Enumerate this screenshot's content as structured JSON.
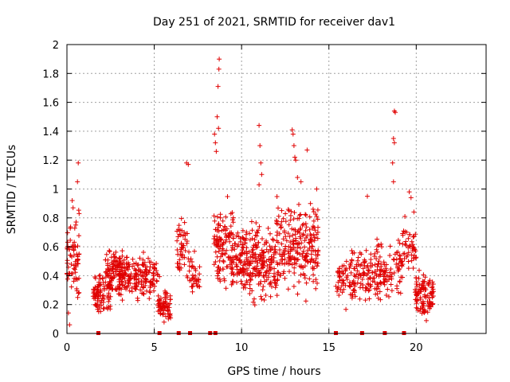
{
  "chart_data": {
    "type": "scatter",
    "title": "Day 251 of 2021, SRMTID for receiver dav1",
    "xlabel": "GPS time / hours",
    "ylabel": "SRMTID / TECUs",
    "xlim": [
      0,
      24
    ],
    "ylim": [
      0,
      2
    ],
    "xticks": [
      0,
      5,
      10,
      15,
      20
    ],
    "xtick_labels": [
      "0",
      "5",
      "10",
      "15",
      "20"
    ],
    "yticks": [
      0,
      0.2,
      0.4,
      0.6,
      0.8,
      1,
      1.2,
      1.4,
      1.6,
      1.8,
      2
    ],
    "ytick_labels": [
      "0",
      "0.2",
      "0.4",
      "0.6",
      "0.8",
      "1",
      "1.2",
      "1.4",
      "1.6",
      "1.8",
      "2"
    ],
    "grid": true,
    "marker": "+",
    "color": "#e00000",
    "clusters": [
      {
        "x": [
          0.0,
          0.7
        ],
        "y": [
          0.05,
          0.95
        ],
        "n": 70
      },
      {
        "x": [
          1.5,
          2.5
        ],
        "y": [
          0.1,
          0.45
        ],
        "n": 90
      },
      {
        "x": [
          2.2,
          3.2
        ],
        "y": [
          0.15,
          0.7
        ],
        "n": 100
      },
      {
        "x": [
          3.0,
          4.6
        ],
        "y": [
          0.2,
          0.6
        ],
        "n": 150
      },
      {
        "x": [
          4.6,
          5.3
        ],
        "y": [
          0.15,
          0.6
        ],
        "n": 40
      },
      {
        "x": [
          5.2,
          6.0
        ],
        "y": [
          0.05,
          0.35
        ],
        "n": 70
      },
      {
        "x": [
          6.3,
          7.0
        ],
        "y": [
          0.3,
          0.85
        ],
        "n": 50
      },
      {
        "x": [
          7.0,
          7.6
        ],
        "y": [
          0.2,
          0.6
        ],
        "n": 35
      },
      {
        "x": [
          8.4,
          9.5
        ],
        "y": [
          0.2,
          1.0
        ],
        "n": 110
      },
      {
        "x": [
          9.4,
          12.0
        ],
        "y": [
          0.15,
          0.85
        ],
        "n": 280
      },
      {
        "x": [
          12.0,
          14.4
        ],
        "y": [
          0.2,
          1.0
        ],
        "n": 240
      },
      {
        "x": [
          15.4,
          16.4
        ],
        "y": [
          0.15,
          0.6
        ],
        "n": 60
      },
      {
        "x": [
          16.4,
          17.6
        ],
        "y": [
          0.15,
          0.65
        ],
        "n": 80
      },
      {
        "x": [
          17.6,
          19.2
        ],
        "y": [
          0.15,
          0.7
        ],
        "n": 110
      },
      {
        "x": [
          19.2,
          20.0
        ],
        "y": [
          0.3,
          0.9
        ],
        "n": 50
      },
      {
        "x": [
          19.9,
          21.0
        ],
        "y": [
          0.05,
          0.5
        ],
        "n": 110
      }
    ],
    "extra_points": [
      {
        "x": 0.65,
        "y": 1.18
      },
      {
        "x": 0.6,
        "y": 1.05
      },
      {
        "x": 0.3,
        "y": 0.92
      },
      {
        "x": 0.35,
        "y": 0.87
      },
      {
        "x": 0.7,
        "y": 0.83
      },
      {
        "x": 0.15,
        "y": 0.06
      },
      {
        "x": 6.85,
        "y": 1.18
      },
      {
        "x": 6.95,
        "y": 1.17
      },
      {
        "x": 8.45,
        "y": 1.38
      },
      {
        "x": 8.5,
        "y": 1.32
      },
      {
        "x": 8.55,
        "y": 1.26
      },
      {
        "x": 8.6,
        "y": 1.5
      },
      {
        "x": 8.65,
        "y": 1.71
      },
      {
        "x": 8.7,
        "y": 1.83
      },
      {
        "x": 8.72,
        "y": 1.9
      },
      {
        "x": 8.68,
        "y": 1.42
      },
      {
        "x": 11.0,
        "y": 1.44
      },
      {
        "x": 11.05,
        "y": 1.3
      },
      {
        "x": 11.1,
        "y": 1.18
      },
      {
        "x": 11.15,
        "y": 1.1
      },
      {
        "x": 11.0,
        "y": 1.03
      },
      {
        "x": 12.9,
        "y": 1.41
      },
      {
        "x": 12.95,
        "y": 1.38
      },
      {
        "x": 13.0,
        "y": 1.3
      },
      {
        "x": 13.05,
        "y": 1.22
      },
      {
        "x": 13.1,
        "y": 1.2
      },
      {
        "x": 13.75,
        "y": 1.27
      },
      {
        "x": 13.2,
        "y": 1.08
      },
      {
        "x": 13.4,
        "y": 1.05
      },
      {
        "x": 18.75,
        "y": 1.54
      },
      {
        "x": 18.8,
        "y": 1.53
      },
      {
        "x": 18.7,
        "y": 1.35
      },
      {
        "x": 18.75,
        "y": 1.32
      },
      {
        "x": 18.65,
        "y": 1.18
      },
      {
        "x": 18.7,
        "y": 1.05
      },
      {
        "x": 19.6,
        "y": 0.98
      },
      {
        "x": 19.7,
        "y": 0.94
      },
      {
        "x": 14.3,
        "y": 1.0
      },
      {
        "x": 17.2,
        "y": 0.95
      }
    ],
    "zero_markers_x": [
      1.8,
      5.3,
      6.4,
      7.05,
      8.2,
      8.5,
      15.4,
      16.9,
      18.2,
      19.3
    ]
  }
}
